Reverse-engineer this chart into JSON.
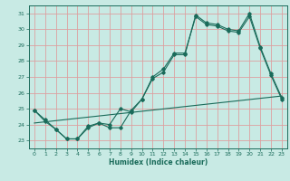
{
  "xlabel": "Humidex (Indice chaleur)",
  "xlim": [
    -0.5,
    23.5
  ],
  "ylim": [
    22.5,
    31.5
  ],
  "yticks": [
    23,
    24,
    25,
    26,
    27,
    28,
    29,
    30,
    31
  ],
  "xticks": [
    0,
    1,
    2,
    3,
    4,
    5,
    6,
    7,
    8,
    9,
    10,
    11,
    12,
    13,
    14,
    15,
    16,
    17,
    18,
    19,
    20,
    21,
    22,
    23
  ],
  "background_color": "#c8eae4",
  "grid_color": "#dda0a0",
  "line_color": "#1a6b5a",
  "series1_y": [
    24.9,
    24.3,
    23.7,
    23.1,
    23.1,
    23.8,
    24.1,
    23.8,
    23.8,
    24.9,
    25.6,
    26.9,
    27.3,
    28.4,
    28.4,
    30.9,
    30.4,
    30.3,
    30.0,
    29.9,
    31.0,
    28.9,
    27.2,
    25.7
  ],
  "series2_y": [
    24.9,
    24.2,
    23.7,
    23.1,
    23.1,
    23.9,
    24.1,
    24.0,
    25.0,
    24.8,
    25.6,
    27.0,
    27.5,
    28.5,
    28.5,
    30.8,
    30.3,
    30.2,
    29.9,
    29.8,
    30.8,
    28.8,
    27.1,
    25.6
  ],
  "series3_x": [
    0,
    23
  ],
  "series3_y": [
    24.1,
    25.8
  ]
}
